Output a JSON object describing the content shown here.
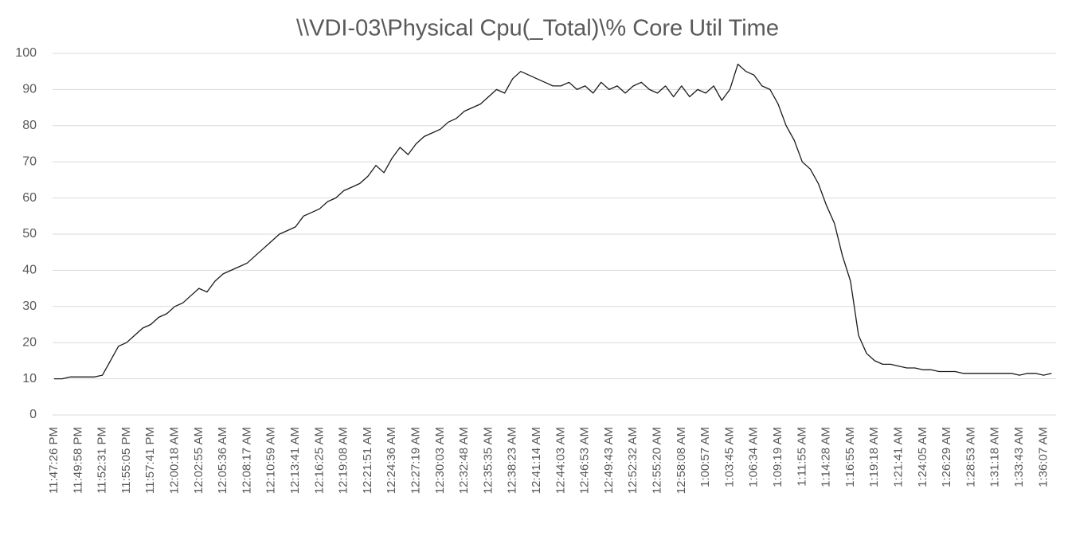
{
  "chart_data": {
    "type": "line",
    "title": "\\\\VDI-03\\Physical Cpu(_Total)\\% Core Util Time",
    "categories": [
      "11:47:26 PM",
      null,
      null,
      "11:49:58 PM",
      null,
      null,
      "11:52:31 PM",
      null,
      null,
      "11:55:05 PM",
      null,
      null,
      "11:57:41 PM",
      null,
      null,
      "12:00:18 AM",
      null,
      null,
      "12:02:55 AM",
      null,
      null,
      "12:05:36 AM",
      null,
      null,
      "12:08:17 AM",
      null,
      null,
      "12:10:59 AM",
      null,
      null,
      "12:13:41 AM",
      null,
      null,
      "12:16:25 AM",
      null,
      null,
      "12:19:08 AM",
      null,
      null,
      "12:21:51 AM",
      null,
      null,
      "12:24:36 AM",
      null,
      null,
      "12:27:19 AM",
      null,
      null,
      "12:30:03 AM",
      null,
      null,
      "12:32:48 AM",
      null,
      null,
      "12:35:35 AM",
      null,
      null,
      "12:38:23 AM",
      null,
      null,
      "12:41:14 AM",
      null,
      null,
      "12:44:03 AM",
      null,
      null,
      "12:46:53 AM",
      null,
      null,
      "12:49:43 AM",
      null,
      null,
      "12:52:32 AM",
      null,
      null,
      "12:55:20 AM",
      null,
      null,
      "12:58:08 AM",
      null,
      null,
      "1:00:57 AM",
      null,
      null,
      "1:03:45 AM",
      null,
      null,
      "1:06:34 AM",
      null,
      null,
      "1:09:19 AM",
      null,
      null,
      "1:11:55 AM",
      null,
      null,
      "1:14:28 AM",
      null,
      null,
      "1:16:55 AM",
      null,
      null,
      "1:19:18 AM",
      null,
      null,
      "1:21:41 AM",
      null,
      null,
      "1:24:05 AM",
      null,
      null,
      "1:26:29 AM",
      null,
      null,
      "1:28:53 AM",
      null,
      null,
      "1:31:18 AM",
      null,
      null,
      "1:33:43 AM",
      null,
      null,
      "1:36:07 AM",
      null
    ],
    "values": [
      10,
      10,
      10.5,
      10.5,
      10.5,
      10.5,
      11,
      15,
      19,
      20,
      22,
      24,
      25,
      27,
      28,
      30,
      31,
      33,
      35,
      34,
      37,
      39,
      40,
      41,
      42,
      44,
      46,
      48,
      50,
      51,
      52,
      55,
      56,
      57,
      59,
      60,
      62,
      63,
      64,
      66,
      69,
      67,
      71,
      74,
      72,
      75,
      77,
      78,
      79,
      81,
      82,
      84,
      85,
      86,
      88,
      90,
      89,
      93,
      95,
      94,
      93,
      92,
      91,
      91,
      92,
      90,
      91,
      89,
      92,
      90,
      91,
      89,
      91,
      92,
      90,
      89,
      91,
      88,
      91,
      88,
      90,
      89,
      91,
      87,
      90,
      97,
      95,
      94,
      91,
      90,
      86,
      80,
      76,
      70,
      68,
      64,
      58,
      53,
      44,
      37,
      22,
      17,
      15,
      14,
      14,
      13.5,
      13,
      13,
      12.5,
      12.5,
      12,
      12,
      12,
      11.5,
      11.5,
      11.5,
      11.5,
      11.5,
      11.5,
      11.5,
      11,
      11.5,
      11.5,
      11,
      11.5
    ],
    "color": "#1a1a1a",
    "ylim": [
      0,
      100
    ],
    "yticks": [
      0,
      10,
      20,
      30,
      40,
      50,
      60,
      70,
      80,
      90,
      100
    ],
    "grid": true
  }
}
